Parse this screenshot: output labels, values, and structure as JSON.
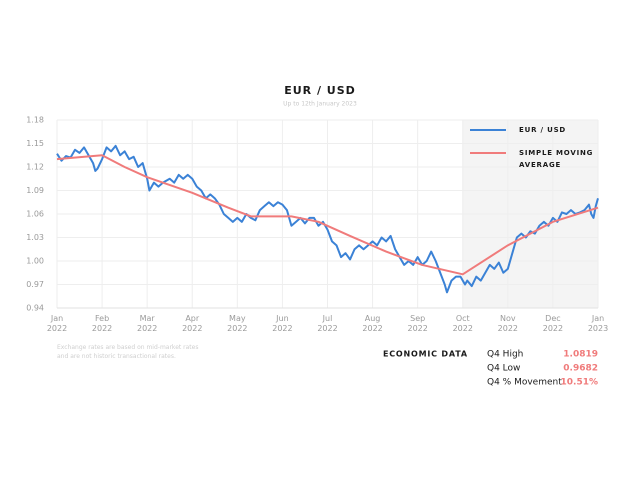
{
  "chart_data": {
    "type": "line",
    "title": "EUR / USD",
    "subtitle": "Up to 12th January 2023",
    "xlim": [
      0,
      12
    ],
    "ylim": [
      0.94,
      1.18
    ],
    "xticks": [
      {
        "value": 0,
        "label": "Jan 2022"
      },
      {
        "value": 1,
        "label": "Feb 2022"
      },
      {
        "value": 2,
        "label": "Mar 2022"
      },
      {
        "value": 3,
        "label": "Apr 2022"
      },
      {
        "value": 4,
        "label": "May 2022"
      },
      {
        "value": 5,
        "label": "Jun 2022"
      },
      {
        "value": 6,
        "label": "Jul 2022"
      },
      {
        "value": 7,
        "label": "Aug 2022"
      },
      {
        "value": 8,
        "label": "Sep 2022"
      },
      {
        "value": 9,
        "label": "Oct 2022"
      },
      {
        "value": 10,
        "label": "Nov 2022"
      },
      {
        "value": 11,
        "label": "Dec 2022"
      },
      {
        "value": 12,
        "label": "Jan 2023"
      }
    ],
    "yticks": [
      0.94,
      0.97,
      {
        "value": 1,
        "label": "1.00"
      },
      1.03,
      1.06,
      1.09,
      1.12,
      1.15,
      1.18
    ],
    "grid": true,
    "shaded_region": [
      9,
      12
    ],
    "legend": "top-right",
    "series": [
      {
        "name": "EUR / USD",
        "color": "#3b82d6",
        "x": [
          0,
          0.1,
          0.2,
          0.3,
          0.4,
          0.5,
          0.6,
          0.7,
          0.8,
          0.85,
          0.9,
          1.0,
          1.1,
          1.2,
          1.3,
          1.4,
          1.5,
          1.6,
          1.7,
          1.8,
          1.9,
          2.0,
          2.05,
          2.15,
          2.25,
          2.35,
          2.5,
          2.6,
          2.7,
          2.8,
          2.9,
          3.0,
          3.1,
          3.2,
          3.3,
          3.4,
          3.5,
          3.6,
          3.7,
          3.8,
          3.9,
          4.0,
          4.1,
          4.2,
          4.3,
          4.4,
          4.5,
          4.6,
          4.7,
          4.8,
          4.9,
          5.0,
          5.1,
          5.2,
          5.3,
          5.4,
          5.5,
          5.6,
          5.7,
          5.8,
          5.9,
          6.0,
          6.1,
          6.2,
          6.3,
          6.4,
          6.5,
          6.6,
          6.7,
          6.8,
          6.9,
          7.0,
          7.1,
          7.2,
          7.3,
          7.4,
          7.5,
          7.6,
          7.7,
          7.8,
          7.9,
          8.0,
          8.1,
          8.2,
          8.3,
          8.4,
          8.5,
          8.6,
          8.65,
          8.75,
          8.85,
          8.95,
          9.05,
          9.1,
          9.2,
          9.3,
          9.4,
          9.5,
          9.6,
          9.7,
          9.8,
          9.9,
          10.0,
          10.1,
          10.2,
          10.3,
          10.4,
          10.5,
          10.6,
          10.7,
          10.8,
          10.9,
          11.0,
          11.1,
          11.2,
          11.3,
          11.4,
          11.5,
          11.6,
          11.7,
          11.8,
          11.85,
          11.9,
          11.95,
          12.0
        ],
        "values": [
          1.137,
          1.128,
          1.134,
          1.132,
          1.142,
          1.138,
          1.145,
          1.135,
          1.125,
          1.115,
          1.118,
          1.13,
          1.145,
          1.14,
          1.147,
          1.135,
          1.14,
          1.13,
          1.133,
          1.12,
          1.125,
          1.105,
          1.09,
          1.1,
          1.095,
          1.1,
          1.105,
          1.1,
          1.11,
          1.105,
          1.11,
          1.105,
          1.095,
          1.09,
          1.08,
          1.085,
          1.08,
          1.072,
          1.06,
          1.055,
          1.05,
          1.055,
          1.05,
          1.06,
          1.055,
          1.052,
          1.065,
          1.07,
          1.075,
          1.07,
          1.075,
          1.072,
          1.065,
          1.045,
          1.05,
          1.055,
          1.048,
          1.055,
          1.055,
          1.045,
          1.05,
          1.04,
          1.025,
          1.02,
          1.005,
          1.01,
          1.002,
          1.015,
          1.02,
          1.015,
          1.02,
          1.025,
          1.02,
          1.03,
          1.025,
          1.032,
          1.015,
          1.005,
          0.995,
          1.0,
          0.995,
          1.005,
          0.995,
          1.0,
          1.012,
          1.0,
          0.985,
          0.97,
          0.96,
          0.975,
          0.98,
          0.98,
          0.97,
          0.975,
          0.968,
          0.98,
          0.975,
          0.985,
          0.995,
          0.99,
          0.998,
          0.985,
          0.99,
          1.01,
          1.03,
          1.035,
          1.03,
          1.038,
          1.035,
          1.045,
          1.05,
          1.045,
          1.055,
          1.05,
          1.062,
          1.06,
          1.065,
          1.06,
          1.062,
          1.065,
          1.072,
          1.06,
          1.055,
          1.07,
          1.08
        ]
      },
      {
        "name": "SIMPLE MOVING AVERAGE",
        "color": "#f07b7b",
        "x": [
          0,
          1.0,
          1.5,
          2.0,
          3.0,
          3.8,
          4.3,
          5.2,
          5.8,
          6.5,
          7.3,
          8.1,
          9.0,
          10.0,
          11.0,
          12.0
        ],
        "values": [
          1.13,
          1.135,
          1.12,
          1.107,
          1.087,
          1.068,
          1.057,
          1.057,
          1.05,
          1.032,
          1.012,
          0.995,
          0.983,
          1.02,
          1.05,
          1.068
        ]
      }
    ],
    "footnote": "Exchange rates are based on mid-market rates and are not historic transactional rates."
  },
  "economic_data": {
    "title": "ECONOMIC DATA",
    "rows": [
      [
        "Q4 High",
        "1.0819"
      ],
      [
        "Q4 Low",
        "0.9682"
      ],
      [
        "Q4 % Movement",
        "10.51%"
      ]
    ]
  }
}
